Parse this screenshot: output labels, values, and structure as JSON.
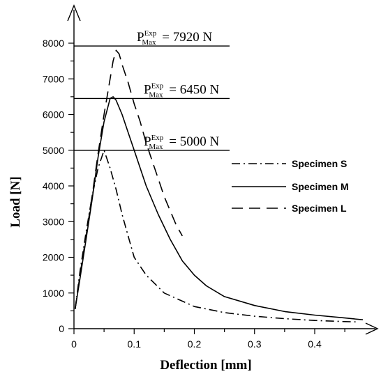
{
  "chart_data": {
    "type": "line",
    "xlabel": "Deflection [mm]",
    "ylabel": "Load [N]",
    "xlim": [
      0,
      0.48
    ],
    "ylim": [
      0,
      8000
    ],
    "x_ticks": [
      "0",
      "0.1",
      "0.2",
      "0.3",
      "0.4"
    ],
    "y_ticks": [
      "0",
      "1000",
      "2000",
      "3000",
      "4000",
      "5000",
      "6000",
      "7000",
      "8000"
    ],
    "grid": false,
    "legend_position": "right",
    "series": [
      {
        "name": "Specimen S",
        "line_style": "dash-dot",
        "color": "#000000",
        "x": [
          0.002,
          0.01,
          0.02,
          0.03,
          0.04,
          0.05,
          0.06,
          0.07,
          0.08,
          0.09,
          0.1,
          0.12,
          0.15,
          0.2,
          0.25,
          0.3,
          0.35,
          0.4,
          0.45,
          0.47
        ],
        "y": [
          550,
          1600,
          2700,
          3700,
          4500,
          5000,
          4500,
          3900,
          3200,
          2600,
          2000,
          1500,
          1000,
          620,
          450,
          350,
          280,
          230,
          200,
          190
        ]
      },
      {
        "name": "Specimen M",
        "line_style": "solid",
        "color": "#000000",
        "x": [
          0.002,
          0.01,
          0.02,
          0.03,
          0.04,
          0.05,
          0.06,
          0.065,
          0.07,
          0.08,
          0.09,
          0.1,
          0.11,
          0.12,
          0.14,
          0.16,
          0.18,
          0.2,
          0.22,
          0.25,
          0.3,
          0.35,
          0.4,
          0.45,
          0.48
        ],
        "y": [
          550,
          1400,
          2500,
          3600,
          4800,
          5800,
          6450,
          6500,
          6400,
          6000,
          5500,
          5000,
          4500,
          4000,
          3200,
          2500,
          1900,
          1500,
          1200,
          900,
          650,
          480,
          380,
          300,
          250
        ]
      },
      {
        "name": "Specimen L",
        "line_style": "dashed",
        "color": "#000000",
        "x": [
          0.002,
          0.01,
          0.02,
          0.03,
          0.04,
          0.05,
          0.06,
          0.065,
          0.07,
          0.075,
          0.08,
          0.09,
          0.1,
          0.11,
          0.12,
          0.13,
          0.14,
          0.15,
          0.16,
          0.17,
          0.18
        ],
        "y": [
          550,
          1500,
          2600,
          3700,
          4900,
          6000,
          7000,
          7500,
          7800,
          7700,
          7400,
          6900,
          6300,
          5800,
          5200,
          4700,
          4200,
          3700,
          3300,
          2900,
          2600
        ]
      }
    ],
    "reference_lines": [
      {
        "value": 7920,
        "label_main": "P",
        "label_sup": "Exp",
        "label_sub": "Max",
        "label_value": "= 7920 N"
      },
      {
        "value": 6450,
        "label_main": "P",
        "label_sup": "Exp",
        "label_sub": "Max",
        "label_value": "= 6450 N"
      },
      {
        "value": 5000,
        "label_main": "P",
        "label_sup": "Exp",
        "label_sub": "Max",
        "label_value": "= 5000 N"
      }
    ]
  }
}
